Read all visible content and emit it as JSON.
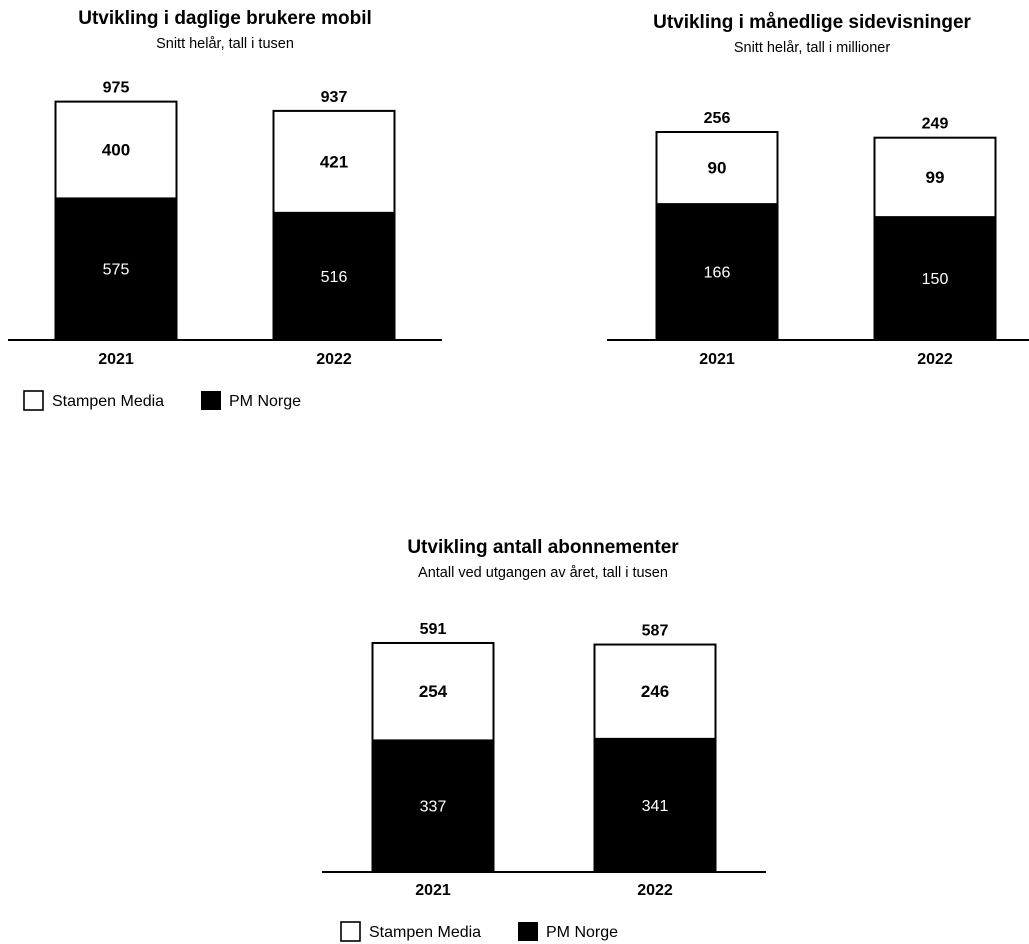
{
  "legend": {
    "stampen": "Stampen Media",
    "pm": "PM Norge",
    "colors": {
      "stampen": "#ffffff",
      "pm": "#000000"
    }
  },
  "chart_data": [
    {
      "type": "bar",
      "stacked": true,
      "title": "Utvikling i daglige brukere mobil",
      "subtitle": "Snitt helår, tall i tusen",
      "categories": [
        "2021",
        "2022"
      ],
      "series": [
        {
          "name": "PM Norge",
          "values": [
            575,
            516
          ]
        },
        {
          "name": "Stampen Media",
          "values": [
            400,
            421
          ]
        }
      ],
      "totals": [
        975,
        937
      ]
    },
    {
      "type": "bar",
      "stacked": true,
      "title": "Utvikling i månedlige sidevisninger",
      "subtitle": "Snitt helår, tall i millioner",
      "categories": [
        "2021",
        "2022"
      ],
      "series": [
        {
          "name": "PM Norge",
          "values": [
            166,
            150
          ]
        },
        {
          "name": "Stampen Media",
          "values": [
            90,
            99
          ]
        }
      ],
      "totals": [
        256,
        249
      ]
    },
    {
      "type": "bar",
      "stacked": true,
      "title": "Utvikling antall abonnementer",
      "subtitle": "Antall ved utgangen av året, tall i tusen",
      "categories": [
        "2021",
        "2022"
      ],
      "series": [
        {
          "name": "PM Norge",
          "values": [
            337,
            341
          ]
        },
        {
          "name": "Stampen Media",
          "values": [
            254,
            246
          ]
        }
      ],
      "totals": [
        591,
        587
      ]
    }
  ]
}
